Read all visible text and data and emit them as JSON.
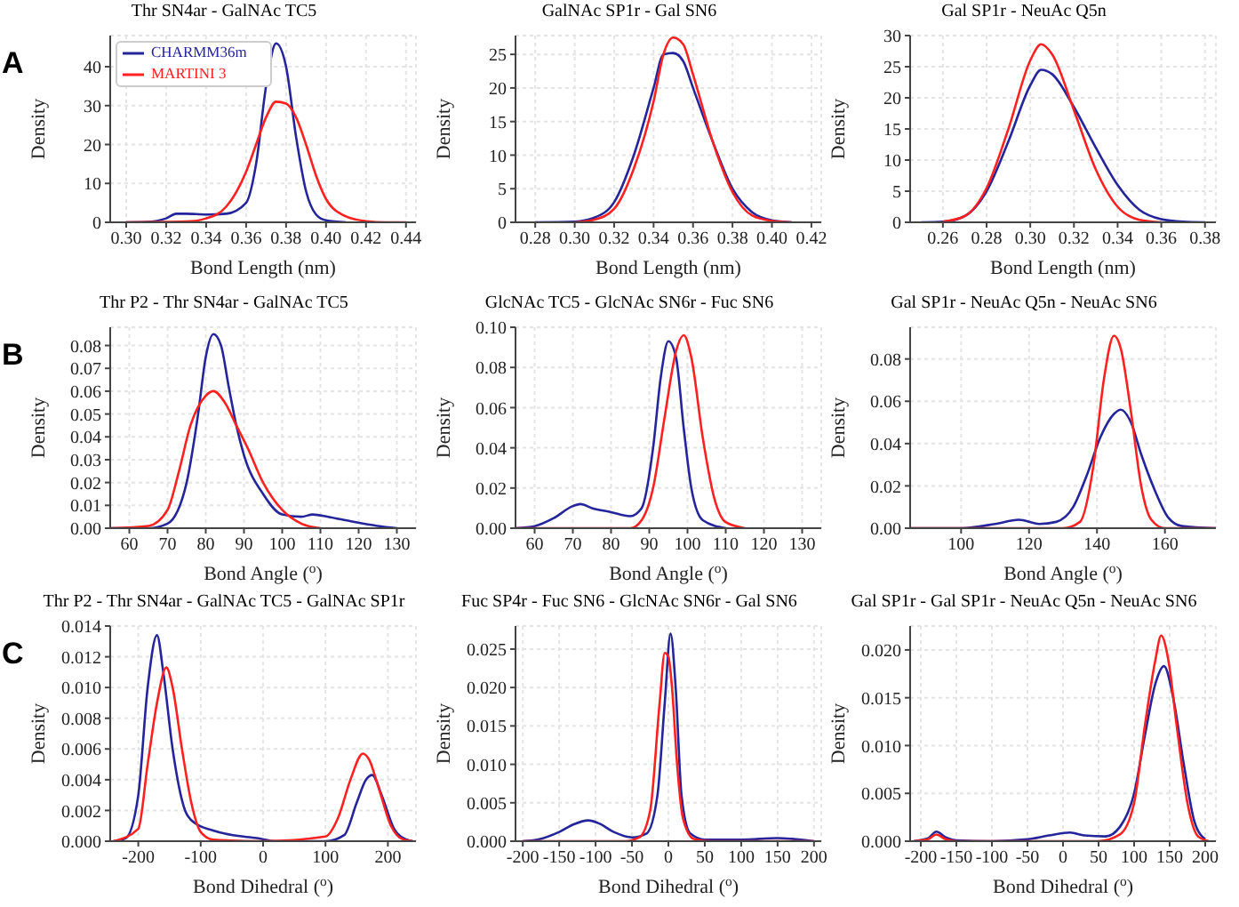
{
  "chart_data": [
    {
      "type": "line",
      "title": "Thr SN4ar - GalNAc TC5",
      "xlabel": "Bond Length (nm)",
      "ylabel": "Density",
      "annotations": [
        "A"
      ],
      "legend": "top left",
      "grid": true,
      "xlim": [
        0.292,
        0.445
      ],
      "xticks": [
        {
          "value": 0.3,
          "label": "0.30"
        },
        {
          "value": 0.32,
          "label": "0.32"
        },
        {
          "value": 0.34,
          "label": "0.34"
        },
        {
          "value": 0.36,
          "label": "0.36"
        },
        {
          "value": 0.38,
          "label": "0.38"
        },
        {
          "value": 0.4,
          "label": "0.40"
        },
        {
          "value": 0.42,
          "label": "0.42"
        },
        {
          "value": 0.44,
          "label": "0.44"
        }
      ],
      "ylim": [
        0,
        48
      ],
      "yticks": [
        0,
        10,
        20,
        30,
        40
      ],
      "series": [
        {
          "name": "CHARMM36m",
          "color": "#24249b",
          "x": [
            0.3,
            0.31,
            0.32,
            0.325,
            0.33,
            0.34,
            0.35,
            0.36,
            0.365,
            0.37,
            0.375,
            0.38,
            0.385,
            0.39,
            0.395,
            0.4,
            0.41
          ],
          "values": [
            0,
            0.1,
            1,
            2.2,
            2.2,
            2,
            2.2,
            5,
            15,
            35,
            46,
            40,
            22,
            8,
            2,
            0.5,
            0
          ]
        },
        {
          "name": "MARTINI 3",
          "color": "#ff2020",
          "x": [
            0.3,
            0.33,
            0.34,
            0.35,
            0.36,
            0.365,
            0.37,
            0.375,
            0.38,
            0.385,
            0.39,
            0.395,
            0.4,
            0.41,
            0.42,
            0.43,
            0.44
          ],
          "values": [
            0,
            0.2,
            1,
            4,
            13,
            20,
            27,
            31,
            30.5,
            27,
            20,
            12,
            6,
            1.5,
            0.3,
            0,
            0
          ]
        }
      ]
    },
    {
      "type": "line",
      "title": "GalNAc SP1r - Gal SN6",
      "xlabel": "Bond Length (nm)",
      "ylabel": "Density",
      "grid": true,
      "xlim": [
        0.27,
        0.425
      ],
      "xticks": [
        {
          "value": 0.28,
          "label": "0.28"
        },
        {
          "value": 0.3,
          "label": "0.30"
        },
        {
          "value": 0.32,
          "label": "0.32"
        },
        {
          "value": 0.34,
          "label": "0.34"
        },
        {
          "value": 0.36,
          "label": "0.36"
        },
        {
          "value": 0.38,
          "label": "0.38"
        },
        {
          "value": 0.4,
          "label": "0.40"
        },
        {
          "value": 0.42,
          "label": "0.42"
        }
      ],
      "ylim": [
        0,
        27.8
      ],
      "yticks": [
        0,
        5,
        10,
        15,
        20,
        25
      ],
      "series": [
        {
          "color": "#24249b",
          "x": [
            0.28,
            0.3,
            0.31,
            0.32,
            0.33,
            0.34,
            0.345,
            0.35,
            0.355,
            0.36,
            0.37,
            0.38,
            0.39,
            0.4,
            0.41
          ],
          "values": [
            0,
            0.1,
            0.7,
            3,
            10,
            20,
            25,
            25.2,
            24,
            20,
            12,
            5,
            1.5,
            0.3,
            0
          ]
        },
        {
          "color": "#ff2020",
          "x": [
            0.3,
            0.31,
            0.32,
            0.33,
            0.34,
            0.345,
            0.35,
            0.355,
            0.36,
            0.37,
            0.38,
            0.39,
            0.4,
            0.41
          ],
          "values": [
            0,
            0.4,
            2,
            8,
            18,
            25,
            27.5,
            26.5,
            22,
            12,
            4.5,
            1,
            0.2,
            0
          ]
        }
      ]
    },
    {
      "type": "line",
      "title": "Gal SP1r - NeuAc Q5n",
      "xlabel": "Bond Length (nm)",
      "ylabel": "Density",
      "grid": true,
      "xlim": [
        0.245,
        0.385
      ],
      "xticks": [
        {
          "value": 0.26,
          "label": "0.26"
        },
        {
          "value": 0.28,
          "label": "0.28"
        },
        {
          "value": 0.3,
          "label": "0.30"
        },
        {
          "value": 0.32,
          "label": "0.32"
        },
        {
          "value": 0.34,
          "label": "0.34"
        },
        {
          "value": 0.36,
          "label": "0.36"
        },
        {
          "value": 0.38,
          "label": "0.38"
        }
      ],
      "ylim": [
        0,
        30
      ],
      "yticks": [
        0,
        5,
        10,
        15,
        20,
        25,
        30
      ],
      "series": [
        {
          "color": "#24249b",
          "x": [
            0.25,
            0.26,
            0.27,
            0.28,
            0.29,
            0.3,
            0.305,
            0.31,
            0.32,
            0.33,
            0.34,
            0.35,
            0.36,
            0.37,
            0.38
          ],
          "values": [
            0,
            0.1,
            1,
            5,
            13,
            22,
            24.5,
            23.8,
            18.5,
            12,
            6,
            2,
            0.5,
            0.1,
            0
          ]
        },
        {
          "color": "#ff2020",
          "x": [
            0.26,
            0.27,
            0.28,
            0.29,
            0.3,
            0.305,
            0.31,
            0.32,
            0.33,
            0.34,
            0.35,
            0.36
          ],
          "values": [
            0.1,
            1,
            5.5,
            15,
            26,
            28.6,
            27,
            18,
            8.5,
            2.5,
            0.4,
            0
          ]
        }
      ]
    },
    {
      "type": "line",
      "title": "Thr P2 - Thr SN4ar - GalNAc TC5",
      "xlabel": "Bond Angle ($^{o}$)",
      "ylabel": "Density",
      "annotations": [
        "B"
      ],
      "grid": true,
      "xlim": [
        55,
        135
      ],
      "xticks": [
        60,
        70,
        80,
        90,
        100,
        110,
        120,
        130
      ],
      "ylim": [
        0,
        0.088
      ],
      "yticks": [
        {
          "value": 0,
          "label": "0.00"
        },
        0.01,
        0.02,
        0.03,
        0.04,
        0.05,
        0.06,
        0.07,
        0.08
      ],
      "series": [
        {
          "color": "#24249b",
          "x": [
            55,
            65,
            70,
            75,
            78,
            80,
            82,
            84,
            86,
            88,
            90,
            95,
            100,
            105,
            108,
            112,
            118,
            125,
            130
          ],
          "values": [
            0,
            0,
            0.002,
            0.02,
            0.05,
            0.075,
            0.085,
            0.08,
            0.062,
            0.045,
            0.032,
            0.015,
            0.006,
            0.005,
            0.006,
            0.005,
            0.003,
            0.001,
            0
          ]
        },
        {
          "color": "#ff2020",
          "x": [
            55,
            65,
            70,
            73,
            76,
            80,
            82,
            85,
            88,
            91,
            95,
            100,
            105,
            110
          ],
          "values": [
            0,
            0.001,
            0.008,
            0.025,
            0.045,
            0.058,
            0.06,
            0.055,
            0.045,
            0.035,
            0.02,
            0.008,
            0.002,
            0
          ]
        }
      ]
    },
    {
      "type": "line",
      "title": "GlcNAc TC5 - GlcNAc SN6r - Fuc SN6",
      "xlabel": "Bond Angle ($^{o}$)",
      "ylabel": "Density",
      "grid": true,
      "xlim": [
        55,
        135
      ],
      "xticks": [
        60,
        70,
        80,
        90,
        100,
        110,
        120,
        130
      ],
      "ylim": [
        0,
        0.1
      ],
      "yticks": [
        {
          "value": 0,
          "label": "0.00"
        },
        0.02,
        0.04,
        0.06,
        0.08,
        {
          "value": 0.1,
          "label": "0.10"
        }
      ],
      "series": [
        {
          "color": "#24249b",
          "x": [
            55,
            60,
            65,
            70,
            72,
            75,
            80,
            85,
            88,
            91,
            93,
            95,
            97,
            99,
            101,
            104,
            110
          ],
          "values": [
            0,
            0.001,
            0.005,
            0.011,
            0.012,
            0.01,
            0.008,
            0.006,
            0.01,
            0.04,
            0.075,
            0.093,
            0.085,
            0.05,
            0.02,
            0.004,
            0
          ]
        },
        {
          "color": "#ff2020",
          "x": [
            55,
            85,
            88,
            91,
            94,
            97,
            99,
            101,
            104,
            107,
            110,
            115
          ],
          "values": [
            0,
            0,
            0.004,
            0.02,
            0.055,
            0.088,
            0.096,
            0.085,
            0.045,
            0.015,
            0.003,
            0
          ]
        }
      ]
    },
    {
      "type": "line",
      "title": "Gal SP1r - NeuAc Q5n - NeuAc SN6",
      "xlabel": "Bond Angle ($^{o}$)",
      "ylabel": "Density",
      "grid": true,
      "xlim": [
        85,
        175
      ],
      "xticks": [
        100,
        120,
        140,
        160
      ],
      "ylim": [
        0,
        0.095
      ],
      "yticks": [
        {
          "value": 0,
          "label": "0.00"
        },
        0.02,
        0.04,
        0.06,
        0.08
      ],
      "series": [
        {
          "color": "#24249b",
          "x": [
            85,
            100,
            110,
            117,
            123,
            128,
            133,
            137,
            141,
            145,
            147,
            150,
            153,
            157,
            161,
            165,
            175
          ],
          "values": [
            0,
            0,
            0.002,
            0.004,
            0.002,
            0.003,
            0.01,
            0.025,
            0.043,
            0.054,
            0.056,
            0.05,
            0.035,
            0.018,
            0.005,
            0.001,
            0
          ]
        },
        {
          "color": "#ff2020",
          "x": [
            85,
            130,
            135,
            139,
            142,
            145,
            147,
            150,
            153,
            156,
            160,
            175
          ],
          "values": [
            0,
            0,
            0.003,
            0.03,
            0.07,
            0.091,
            0.085,
            0.055,
            0.02,
            0.004,
            0,
            0
          ]
        }
      ]
    },
    {
      "type": "line",
      "title": "Thr P2 - Thr SN4ar - GalNAc TC5 - GalNAc SP1r",
      "xlabel": "Bond Dihedral ($^{o}$)",
      "ylabel": "Density",
      "annotations": [
        "C"
      ],
      "grid": true,
      "xlim": [
        -245,
        245
      ],
      "xticks": [
        -200,
        -100,
        0,
        100,
        200
      ],
      "ylim": [
        0,
        0.014
      ],
      "yticks": [
        {
          "value": 0,
          "label": "0.000"
        },
        {
          "value": 0.002,
          "label": "0.002"
        },
        {
          "value": 0.004,
          "label": "0.004"
        },
        {
          "value": 0.006,
          "label": "0.006"
        },
        {
          "value": 0.008,
          "label": "0.008"
        },
        {
          "value": 0.01,
          "label": "0.010"
        },
        {
          "value": 0.012,
          "label": "0.012"
        },
        {
          "value": 0.014,
          "label": "0.014"
        }
      ],
      "series": [
        {
          "color": "#24249b",
          "x": [
            -240,
            -220,
            -200,
            -185,
            -170,
            -160,
            -145,
            -125,
            -110,
            -80,
            -50,
            -10,
            20,
            100,
            130,
            150,
            165,
            175,
            190,
            210,
            230,
            240
          ],
          "values": [
            0,
            0.0002,
            0.003,
            0.01,
            0.0134,
            0.011,
            0.006,
            0.002,
            0.0012,
            0.0007,
            0.0004,
            0.0002,
            0,
            0,
            0.0004,
            0.0025,
            0.004,
            0.0043,
            0.003,
            0.0008,
            0.0001,
            0
          ]
        },
        {
          "color": "#ff2020",
          "x": [
            -240,
            -200,
            -185,
            -170,
            -155,
            -145,
            -130,
            -115,
            -100,
            -80,
            0,
            100,
            120,
            140,
            160,
            170,
            185,
            205,
            225,
            240
          ],
          "values": [
            0,
            0.0008,
            0.005,
            0.009,
            0.0113,
            0.01,
            0.006,
            0.0025,
            0.0006,
            0.0001,
            0,
            0.0003,
            0.0015,
            0.004,
            0.0057,
            0.0053,
            0.0035,
            0.001,
            0.0001,
            0
          ]
        }
      ]
    },
    {
      "type": "line",
      "title": "Fuc SP4r - Fuc SN6 - GlcNAc SN6r - Gal SN6",
      "xlabel": "Bond Dihedral ($^{o}$)",
      "ylabel": "Density",
      "grid": true,
      "xlim": [
        -210,
        210
      ],
      "xticks": [
        -200,
        -150,
        -100,
        -50,
        0,
        50,
        100,
        150,
        200
      ],
      "ylim": [
        0,
        0.028
      ],
      "yticks": [
        {
          "value": 0,
          "label": "0.000"
        },
        0.005,
        {
          "value": 0.01,
          "label": "0.010"
        },
        0.015,
        {
          "value": 0.02,
          "label": "0.020"
        },
        0.025
      ],
      "series": [
        {
          "color": "#24249b",
          "x": [
            -200,
            -180,
            -150,
            -130,
            -110,
            -95,
            -75,
            -50,
            -30,
            -15,
            -5,
            3,
            10,
            18,
            30,
            50,
            100,
            150,
            170,
            200
          ],
          "values": [
            0,
            0.0002,
            0.0012,
            0.0022,
            0.0027,
            0.0023,
            0.0012,
            0.0005,
            0.001,
            0.006,
            0.018,
            0.027,
            0.02,
            0.006,
            0.001,
            0.0002,
            0.0002,
            0.0004,
            0.0003,
            0
          ]
        },
        {
          "color": "#ff2020",
          "x": [
            -200,
            -60,
            -40,
            -25,
            -12,
            -5,
            0,
            5,
            12,
            20,
            35,
            60,
            200
          ],
          "values": [
            0,
            0,
            0.0005,
            0.004,
            0.018,
            0.0245,
            0.024,
            0.02,
            0.01,
            0.003,
            0.0003,
            0,
            0
          ]
        }
      ]
    },
    {
      "type": "line",
      "title": "Gal SP1r - Gal SP1r - NeuAc Q5n - NeuAc SN6",
      "xlabel": "Bond Dihedral ($^{o}$)",
      "ylabel": "Density",
      "grid": true,
      "xlim": [
        -215,
        215
      ],
      "xticks": [
        -200,
        -150,
        -100,
        -50,
        0,
        50,
        100,
        150,
        200
      ],
      "ylim": [
        0,
        0.0225
      ],
      "yticks": [
        {
          "value": 0,
          "label": "0.000"
        },
        0.005,
        {
          "value": 0.01,
          "label": "0.010"
        },
        0.015,
        {
          "value": 0.02,
          "label": "0.020"
        }
      ],
      "series": [
        {
          "color": "#24249b",
          "x": [
            -210,
            -190,
            -178,
            -165,
            -150,
            -100,
            -50,
            -20,
            10,
            30,
            60,
            80,
            100,
            115,
            130,
            142,
            155,
            170,
            185,
            200
          ],
          "values": [
            0,
            0.0003,
            0.001,
            0.0004,
            0.0001,
            0,
            0.0002,
            0.0006,
            0.0009,
            0.0006,
            0.0005,
            0.0015,
            0.005,
            0.011,
            0.0165,
            0.0183,
            0.015,
            0.008,
            0.002,
            0.0002
          ]
        },
        {
          "color": "#ff2020",
          "x": [
            -210,
            -190,
            -178,
            -165,
            -150,
            50,
            80,
            100,
            115,
            130,
            138,
            148,
            160,
            175,
            190,
            205
          ],
          "values": [
            0,
            0.0002,
            0.0007,
            0.0002,
            0,
            0,
            0.0007,
            0.004,
            0.012,
            0.019,
            0.0215,
            0.019,
            0.012,
            0.004,
            0.0005,
            0
          ]
        }
      ]
    }
  ]
}
